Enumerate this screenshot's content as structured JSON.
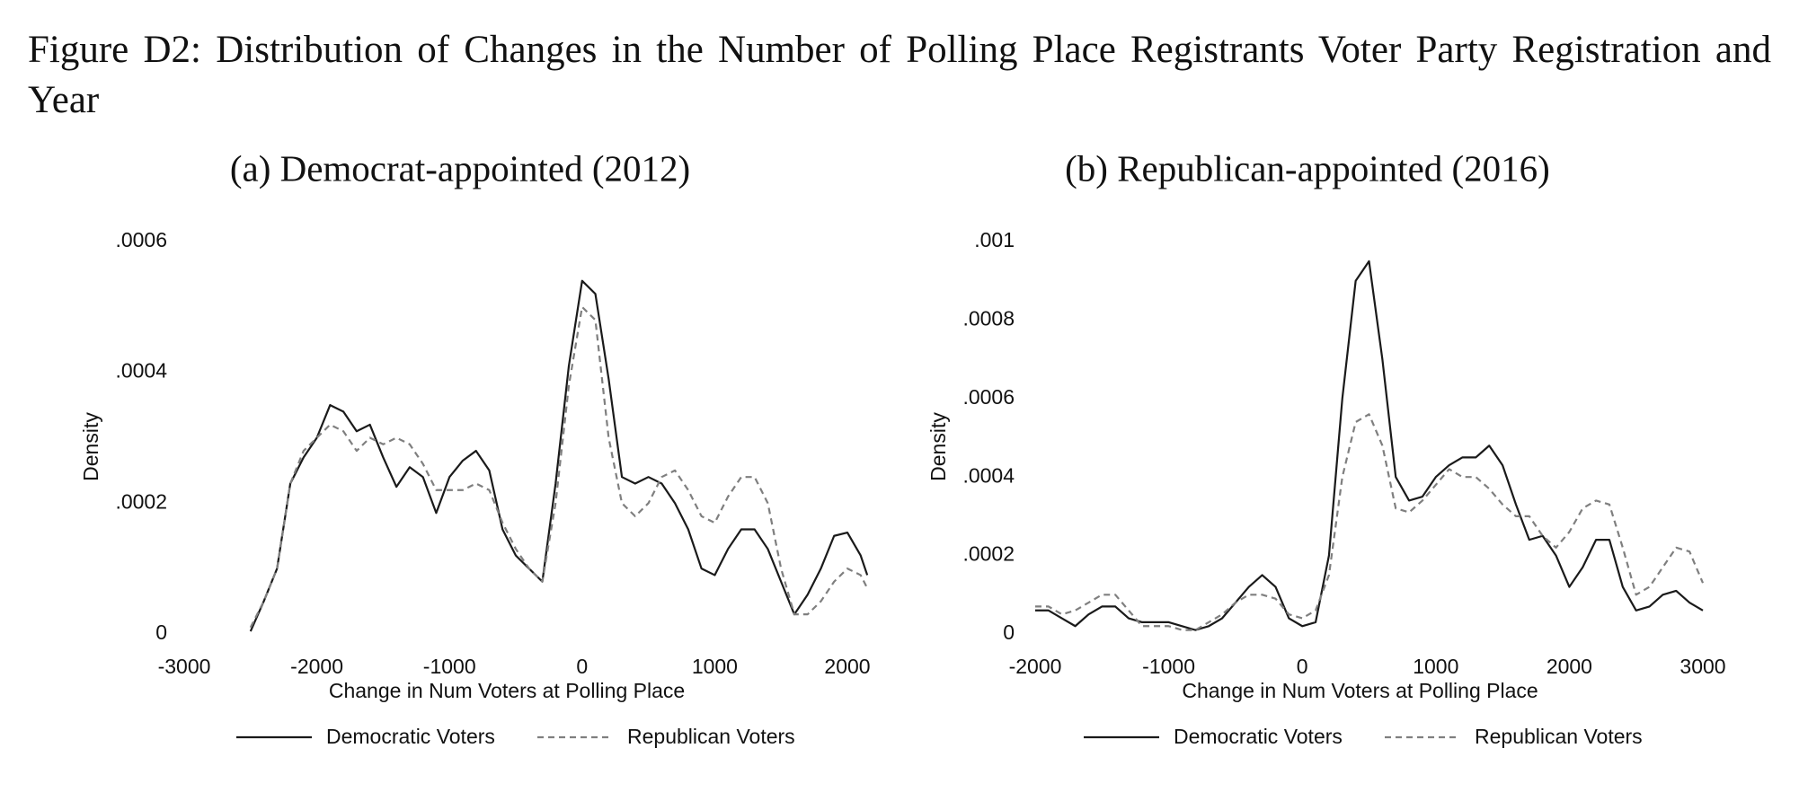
{
  "title": "Figure D2: Distribution of Changes in the Number of Polling Place Registrants Voter Party Registration and Year",
  "chart_data": [
    {
      "type": "line",
      "title": "(a) Democrat-appointed (2012)",
      "xlabel": "Change in Num Voters at Polling Place",
      "ylabel": "Density",
      "x": [
        -2500,
        -2400,
        -2300,
        -2200,
        -2100,
        -2000,
        -1900,
        -1800,
        -1700,
        -1600,
        -1500,
        -1400,
        -1300,
        -1200,
        -1100,
        -1000,
        -900,
        -800,
        -700,
        -600,
        -500,
        -400,
        -300,
        -200,
        -100,
        0,
        100,
        200,
        300,
        400,
        500,
        600,
        700,
        800,
        900,
        1000,
        1100,
        1200,
        1300,
        1400,
        1500,
        1600,
        1700,
        1800,
        1900,
        2000,
        2100,
        2150
      ],
      "series": [
        {
          "name": "Democratic Voters",
          "color": "#1a1a1a",
          "linestyle": "solid",
          "values": [
            4e-06,
            5e-05,
            0.0001,
            0.00023,
            0.00027,
            0.0003,
            0.00035,
            0.00034,
            0.00031,
            0.00032,
            0.00027,
            0.000225,
            0.000255,
            0.00024,
            0.000185,
            0.00024,
            0.000265,
            0.00028,
            0.00025,
            0.00016,
            0.00012,
            0.0001,
            8e-05,
            0.00023,
            0.00041,
            0.00054,
            0.00052,
            0.00039,
            0.00024,
            0.00023,
            0.00024,
            0.00023,
            0.0002,
            0.00016,
            0.0001,
            9e-05,
            0.00013,
            0.00016,
            0.00016,
            0.00013,
            8e-05,
            3e-05,
            6e-05,
            0.0001,
            0.00015,
            0.000155,
            0.00012,
            9e-05
          ]
        },
        {
          "name": "Republican Voters",
          "color": "#7f7f7f",
          "linestyle": "dashed",
          "values": [
            1e-05,
            5e-05,
            0.0001,
            0.00023,
            0.00028,
            0.0003,
            0.00032,
            0.00031,
            0.00028,
            0.0003,
            0.00029,
            0.0003,
            0.00029,
            0.00026,
            0.00022,
            0.00022,
            0.00022,
            0.00023,
            0.00022,
            0.00017,
            0.00013,
            0.0001,
            8e-05,
            0.0002,
            0.00038,
            0.0005,
            0.00048,
            0.0003,
            0.0002,
            0.00018,
            0.0002,
            0.00024,
            0.00025,
            0.00022,
            0.00018,
            0.00017,
            0.00021,
            0.00024,
            0.00024,
            0.0002,
            0.0001,
            3e-05,
            3e-05,
            5e-05,
            8e-05,
            0.0001,
            9e-05,
            7e-05
          ]
        }
      ],
      "xlim": [
        -3000,
        2150
      ],
      "xticks": [
        -3000,
        -2000,
        -1000,
        0,
        1000,
        2000
      ],
      "ylim": [
        0,
        0.0006
      ],
      "yticks": [
        0,
        {
          "value": 0.0002,
          "label": ".0002"
        },
        {
          "value": 0.0004,
          "label": ".0004"
        },
        {
          "value": 0.0006,
          "label": ".0006"
        }
      ],
      "grid": false,
      "legend": "bottom"
    },
    {
      "type": "line",
      "title": "(b) Republican-appointed (2016)",
      "xlabel": "Change in Num Voters at Polling Place",
      "ylabel": "Density",
      "x": [
        -2000,
        -1900,
        -1800,
        -1700,
        -1600,
        -1500,
        -1400,
        -1300,
        -1200,
        -1100,
        -1000,
        -900,
        -800,
        -700,
        -600,
        -500,
        -400,
        -300,
        -200,
        -100,
        0,
        100,
        200,
        300,
        400,
        500,
        600,
        700,
        800,
        900,
        1000,
        1100,
        1200,
        1300,
        1400,
        1500,
        1600,
        1700,
        1800,
        1900,
        2000,
        2100,
        2200,
        2300,
        2400,
        2500,
        2600,
        2700,
        2800,
        2900,
        3000
      ],
      "series": [
        {
          "name": "Democratic Voters",
          "color": "#1a1a1a",
          "linestyle": "solid",
          "values": [
            6e-05,
            6e-05,
            4e-05,
            2e-05,
            5e-05,
            7e-05,
            7e-05,
            4e-05,
            3e-05,
            3e-05,
            3e-05,
            2e-05,
            1e-05,
            2e-05,
            4e-05,
            8e-05,
            0.00012,
            0.00015,
            0.00012,
            4e-05,
            2e-05,
            3e-05,
            0.0002,
            0.0006,
            0.0009,
            0.00095,
            0.0007,
            0.0004,
            0.00034,
            0.00035,
            0.0004,
            0.00043,
            0.00045,
            0.00045,
            0.00048,
            0.00043,
            0.00033,
            0.00024,
            0.00025,
            0.0002,
            0.00012,
            0.00017,
            0.00024,
            0.00024,
            0.00012,
            6e-05,
            7e-05,
            0.0001,
            0.00011,
            8e-05,
            6e-05
          ]
        },
        {
          "name": "Republican Voters",
          "color": "#7f7f7f",
          "linestyle": "dashed",
          "values": [
            7e-05,
            7e-05,
            5e-05,
            6e-05,
            8e-05,
            0.0001,
            0.0001,
            6e-05,
            2e-05,
            2e-05,
            2e-05,
            1e-05,
            1e-05,
            3e-05,
            5e-05,
            8e-05,
            0.0001,
            0.0001,
            9e-05,
            5e-05,
            4e-05,
            6e-05,
            0.00015,
            0.0004,
            0.00054,
            0.00056,
            0.00048,
            0.00032,
            0.00031,
            0.00034,
            0.00038,
            0.00042,
            0.0004,
            0.0004,
            0.00037,
            0.00033,
            0.0003,
            0.0003,
            0.00025,
            0.00022,
            0.00026,
            0.00032,
            0.00034,
            0.00033,
            0.00022,
            0.0001,
            0.00012,
            0.00017,
            0.00022,
            0.00021,
            0.00013
          ]
        }
      ],
      "xlim": [
        -2000,
        3000
      ],
      "xticks": [
        -2000,
        -1000,
        0,
        1000,
        2000,
        3000
      ],
      "ylim": [
        0,
        0.001
      ],
      "yticks": [
        0,
        {
          "value": 0.0002,
          "label": ".0002"
        },
        {
          "value": 0.0004,
          "label": ".0004"
        },
        {
          "value": 0.0006,
          "label": ".0006"
        },
        {
          "value": 0.0008,
          "label": ".0008"
        },
        {
          "value": 0.001,
          "label": ".001"
        }
      ],
      "grid": false,
      "legend": "bottom"
    }
  ]
}
